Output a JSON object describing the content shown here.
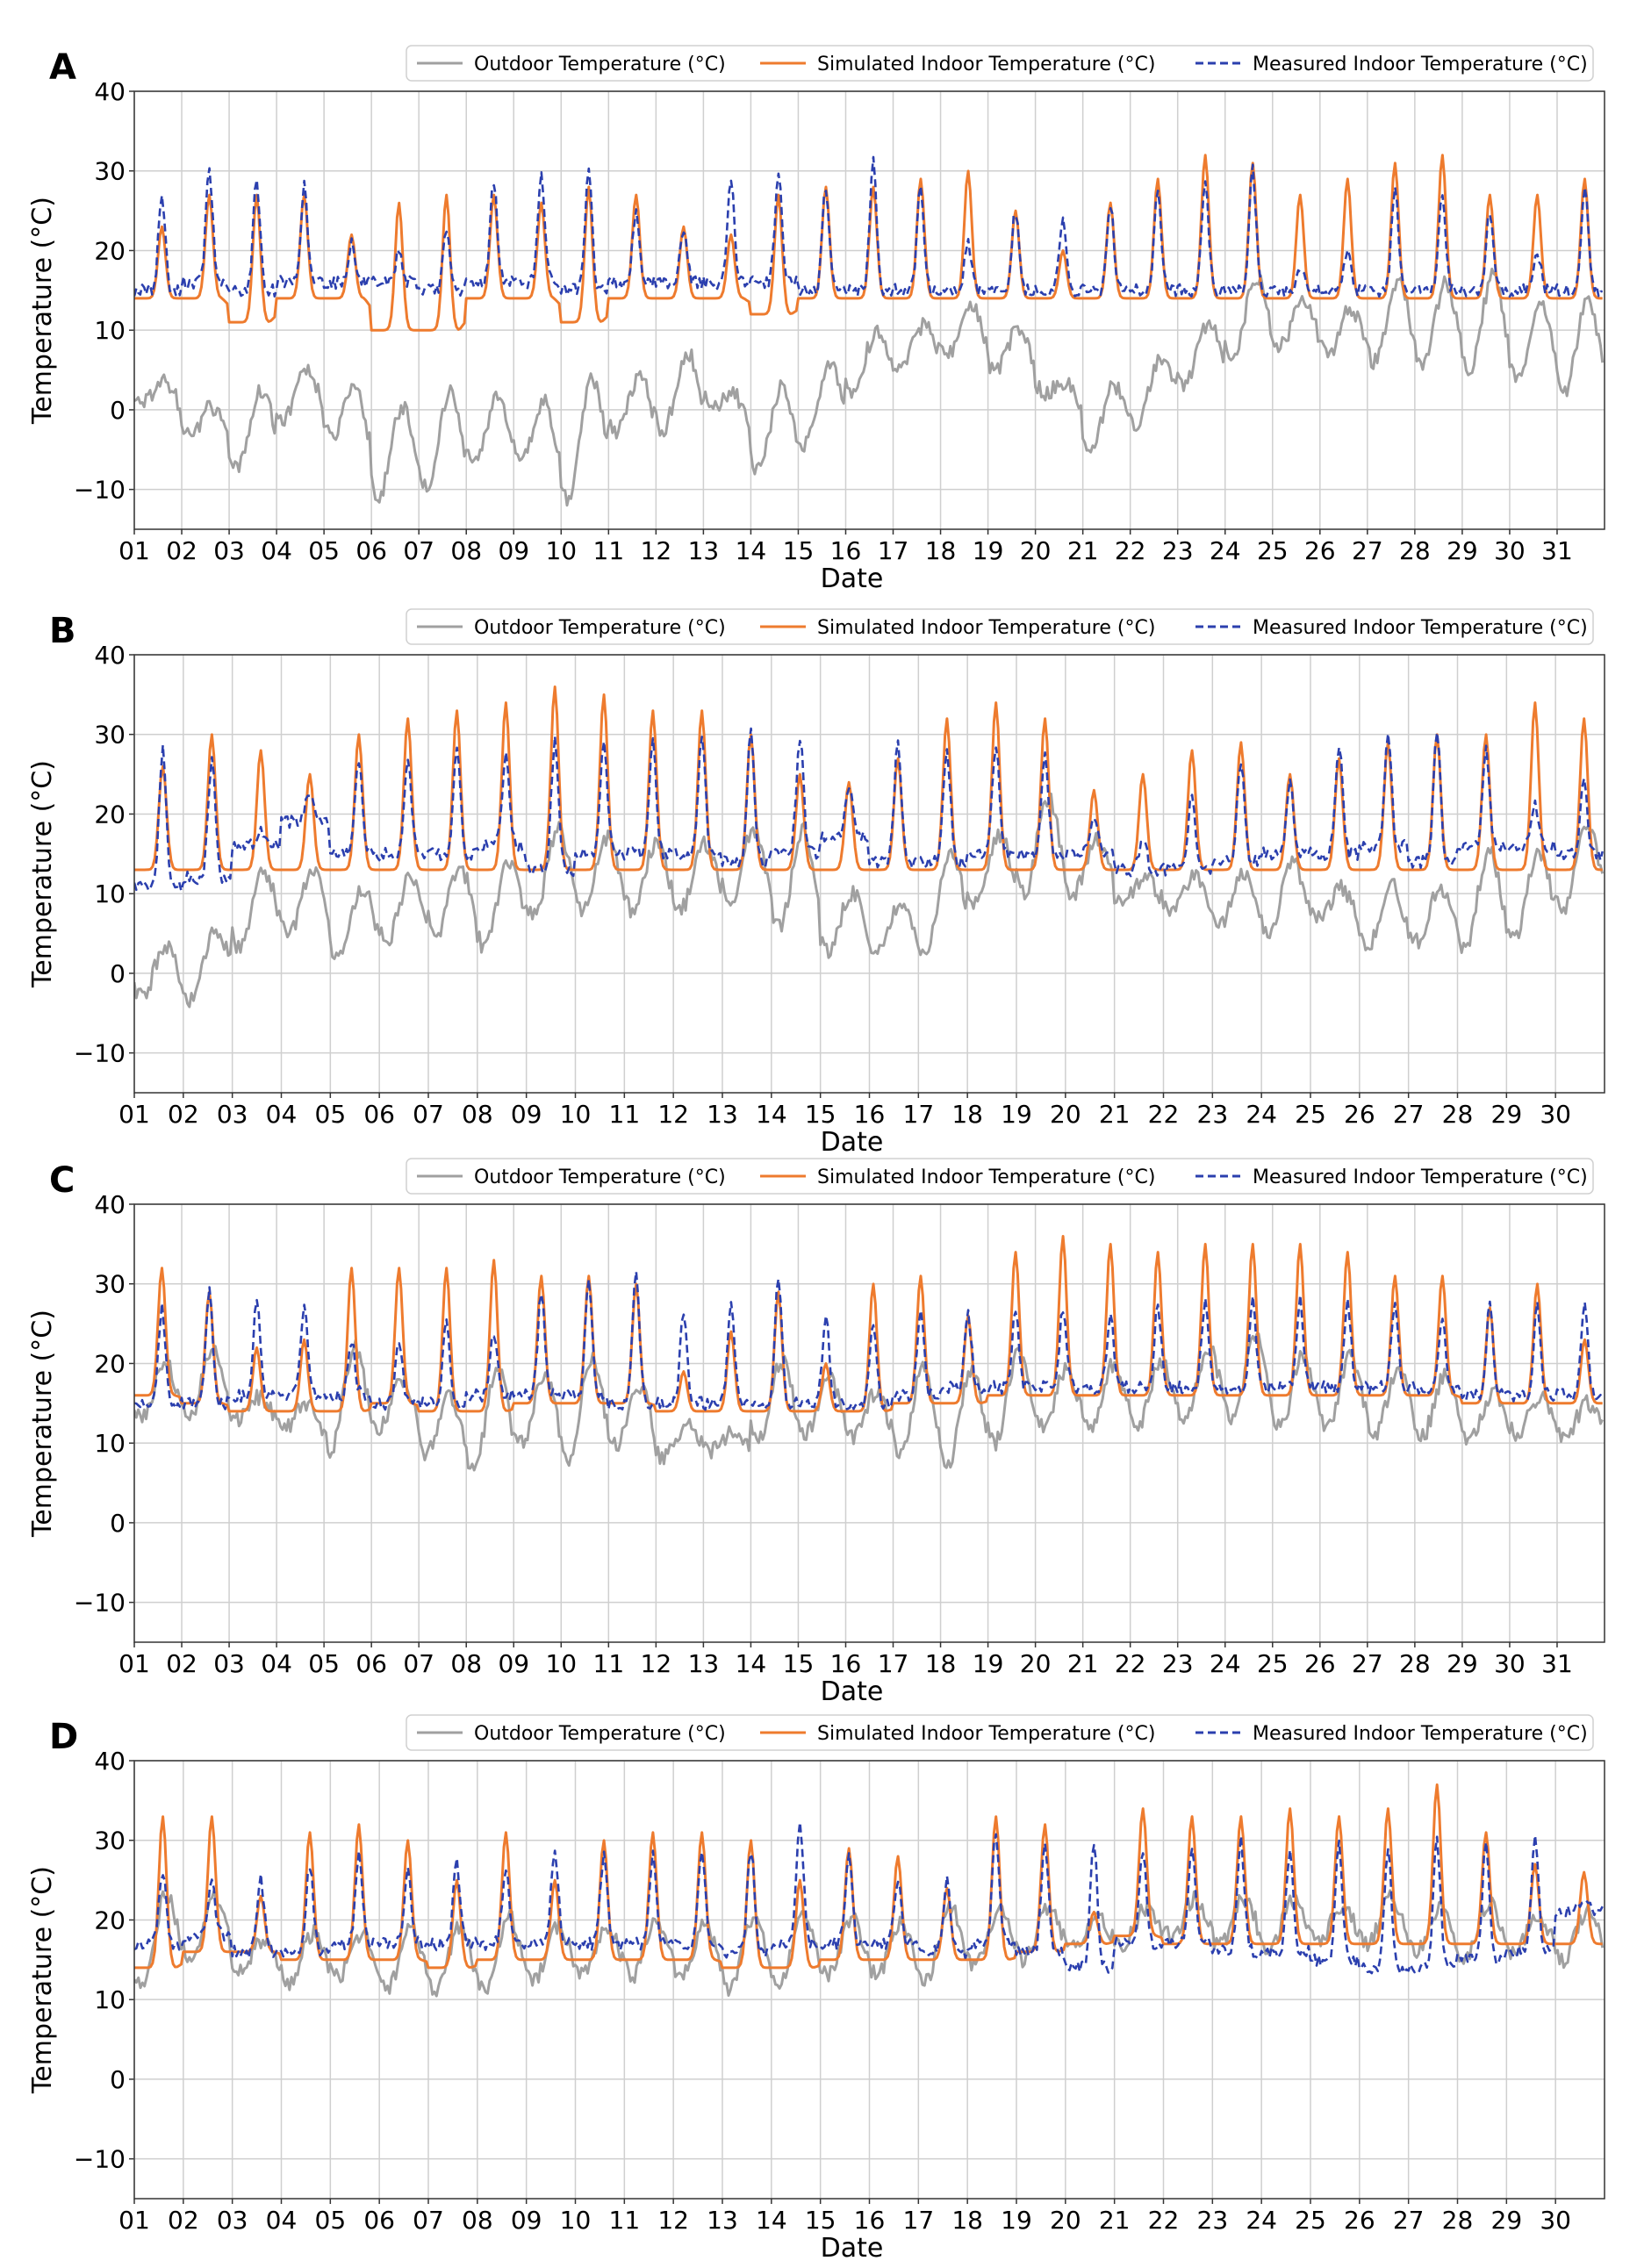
{
  "legend": {
    "outdoor": "Outdoor Temperature (°C)",
    "simulated": "Simulated Indoor Temperature (°C)",
    "measured": "Measured Indoor Temperature (°C)"
  },
  "colors": {
    "outdoor": "#a0a0a0",
    "simulated": "#ee7b2e",
    "measured": "#2b3fae",
    "grid": "#cfcfcf"
  },
  "chart_data": [
    {
      "type": "line",
      "panel": "A",
      "days": 31,
      "xlabel": "Date",
      "ylabel": "Temperature (°C)",
      "ylim": [
        -15,
        40
      ],
      "yticks": [
        -10,
        0,
        10,
        20,
        30,
        40
      ],
      "legend_position": "top-right",
      "series": [
        {
          "name": "Outdoor Temperature (°C)",
          "daily_min": [
            1,
            -3,
            -8,
            -1,
            -3,
            -11,
            -10,
            -7,
            -6,
            -12,
            -3,
            -3,
            1,
            -8,
            -5,
            2,
            5,
            7,
            5,
            3,
            -5,
            -2,
            3,
            6,
            8,
            7,
            6,
            6,
            5,
            4,
            2
          ],
          "daily_max": [
            5,
            2,
            0,
            6,
            6,
            0,
            1,
            1,
            3,
            1,
            4,
            6,
            5,
            2,
            4,
            9,
            10,
            14,
            11,
            6,
            2,
            5,
            10,
            16,
            14,
            13,
            16,
            16,
            17,
            14,
            14
          ]
        },
        {
          "name": "Simulated Indoor Temperature (°C)",
          "daily_min": [
            14,
            14,
            11,
            14,
            14,
            10,
            10,
            14,
            14,
            11,
            14,
            14,
            14,
            12,
            14,
            14,
            14,
            14,
            14,
            14,
            14,
            14,
            14,
            14,
            14,
            14,
            14,
            14,
            14,
            14,
            14
          ],
          "daily_max": [
            23,
            27,
            27,
            27,
            22,
            26,
            27,
            27,
            26,
            28,
            27,
            23,
            22,
            27,
            28,
            28,
            29,
            30,
            25,
            20,
            26,
            29,
            32,
            31,
            27,
            29,
            31,
            32,
            27,
            27,
            29
          ]
        },
        {
          "name": "Measured Indoor Temperature (°C)",
          "daily_min": [
            15,
            16,
            15,
            16,
            16,
            16,
            15,
            16,
            16,
            15,
            16,
            16,
            16,
            16,
            15,
            15,
            15,
            15,
            15,
            15,
            15,
            15,
            15,
            15,
            15,
            15,
            15,
            15,
            15,
            15,
            15
          ],
          "daily_max": [
            27,
            30,
            29,
            28,
            21,
            20,
            22,
            29,
            30,
            30,
            25,
            23,
            29,
            30,
            28,
            31,
            28,
            21,
            25,
            24,
            26,
            28,
            29,
            30,
            18,
            20,
            28,
            27,
            25,
            20,
            28
          ]
        }
      ]
    },
    {
      "type": "line",
      "panel": "B",
      "days": 30,
      "xlabel": "Date",
      "ylabel": "Temperature (°C)",
      "ylim": [
        -15,
        40
      ],
      "yticks": [
        -10,
        0,
        10,
        20,
        30,
        40
      ],
      "legend_position": "top-right",
      "series": [
        {
          "name": "Outdoor Temperature (°C)",
          "daily_min": [
            -3,
            -4,
            3,
            5,
            2,
            4,
            5,
            3,
            7,
            8,
            8,
            8,
            9,
            6,
            3,
            3,
            2,
            9,
            10,
            10,
            9,
            8,
            6,
            5,
            7,
            3,
            4,
            3,
            4,
            8
          ],
          "daily_max": [
            4,
            3,
            12,
            14,
            10,
            12,
            14,
            13,
            18,
            17,
            16,
            16,
            19,
            19,
            10,
            9,
            13,
            17,
            22,
            17,
            12,
            13,
            13,
            13,
            12,
            11,
            11,
            15,
            14,
            19
          ]
        },
        {
          "name": "Simulated Indoor Temperature (°C)",
          "daily_min": [
            13,
            13,
            13,
            13,
            13,
            13,
            13,
            13,
            13,
            13,
            13,
            13,
            13,
            13,
            13,
            13,
            13,
            13,
            13,
            13,
            13,
            13,
            13,
            13,
            13,
            13,
            13,
            13,
            13,
            13
          ],
          "daily_max": [
            26,
            30,
            28,
            25,
            30,
            32,
            33,
            34,
            36,
            35,
            33,
            33,
            30,
            25,
            24,
            27,
            32,
            34,
            32,
            23,
            25,
            28,
            29,
            25,
            27,
            29,
            30,
            30,
            34,
            32
          ]
        },
        {
          "name": "Measured Indoor Temperature (°C)",
          "daily_min": [
            11,
            12,
            16,
            19,
            15,
            15,
            15,
            16,
            13,
            15,
            15,
            15,
            14,
            15,
            17,
            14,
            14,
            15,
            15,
            15,
            13,
            13,
            14,
            15,
            15,
            16,
            14,
            16,
            16,
            15
          ],
          "daily_max": [
            28,
            27,
            18,
            23,
            27,
            27,
            28,
            28,
            29,
            29,
            29,
            30,
            30,
            30,
            24,
            29,
            28,
            29,
            28,
            20,
            17,
            23,
            27,
            24,
            29,
            30,
            30,
            28,
            21,
            24
          ]
        }
      ]
    },
    {
      "type": "line",
      "panel": "C",
      "days": 31,
      "xlabel": "Date",
      "ylabel": "Temperature (°C)",
      "ylim": [
        -15,
        40
      ],
      "yticks": [
        -10,
        0,
        10,
        20,
        30,
        40
      ],
      "legend_position": "top-right",
      "series": [
        {
          "name": "Outdoor Temperature (°C)",
          "daily_min": [
            13,
            13,
            13,
            12,
            9,
            12,
            9,
            6,
            10,
            8,
            10,
            8,
            9,
            10,
            11,
            11,
            9,
            7,
            10,
            12,
            12,
            12,
            13,
            13,
            12,
            12,
            11,
            11,
            10,
            11,
            11
          ],
          "daily_max": [
            20,
            22,
            16,
            16,
            21,
            19,
            17,
            18,
            19,
            20,
            18,
            12,
            11,
            20,
            18,
            17,
            20,
            18,
            21,
            19,
            20,
            20,
            22,
            24,
            21,
            21,
            19,
            19,
            16,
            16,
            15
          ]
        },
        {
          "name": "Simulated Indoor Temperature (°C)",
          "daily_min": [
            16,
            15,
            14,
            14,
            14,
            15,
            14,
            14,
            15,
            15,
            15,
            14,
            14,
            14,
            14,
            14,
            15,
            15,
            16,
            16,
            16,
            16,
            16,
            16,
            16,
            16,
            16,
            16,
            15,
            15,
            15
          ],
          "daily_max": [
            32,
            29,
            22,
            23,
            32,
            32,
            32,
            33,
            31,
            31,
            30,
            19,
            24,
            29,
            20,
            30,
            31,
            26,
            34,
            36,
            35,
            34,
            35,
            35,
            35,
            34,
            31,
            31,
            27,
            30,
            23
          ]
        },
        {
          "name": "Measured Indoor Temperature (°C)",
          "daily_min": [
            15,
            15,
            16,
            16,
            16,
            15,
            15,
            16,
            16,
            16,
            15,
            15,
            15,
            15,
            15,
            15,
            16,
            17,
            17,
            17,
            17,
            17,
            17,
            17,
            17,
            17,
            17,
            17,
            16,
            16,
            16
          ],
          "daily_max": [
            27,
            29,
            28,
            27,
            23,
            23,
            25,
            24,
            29,
            30,
            32,
            26,
            28,
            31,
            26,
            25,
            27,
            26,
            27,
            27,
            26,
            27,
            28,
            28,
            28,
            28,
            28,
            26,
            27,
            27,
            27
          ]
        }
      ]
    },
    {
      "type": "line",
      "panel": "D",
      "days": 30,
      "xlabel": "Date",
      "ylabel": "Temperature (°C)",
      "ylim": [
        -15,
        40
      ],
      "yticks": [
        -10,
        0,
        10,
        20,
        30,
        40
      ],
      "legend_position": "top-right",
      "series": [
        {
          "name": "Outdoor Temperature (°C)",
          "daily_min": [
            11,
            15,
            14,
            12,
            13,
            11,
            11,
            11,
            12,
            13,
            13,
            13,
            11,
            12,
            13,
            13,
            12,
            14,
            15,
            17,
            17,
            18,
            17,
            16,
            17,
            17,
            16,
            15,
            16,
            15
          ],
          "daily_max": [
            22,
            23,
            18,
            18,
            19,
            19,
            19,
            20,
            19,
            19,
            20,
            20,
            20,
            20,
            20,
            20,
            21,
            21,
            21,
            20,
            21,
            23,
            23,
            22,
            22,
            23,
            22,
            22,
            21,
            21
          ]
        },
        {
          "name": "Simulated Indoor Temperature (°C)",
          "daily_min": [
            14,
            16,
            16,
            15,
            15,
            15,
            14,
            15,
            15,
            15,
            15,
            15,
            14,
            14,
            15,
            15,
            15,
            15,
            16,
            17,
            18,
            17,
            17,
            17,
            17,
            17,
            17,
            17,
            17,
            17
          ],
          "daily_max": [
            33,
            33,
            23,
            31,
            32,
            30,
            25,
            31,
            25,
            30,
            31,
            31,
            30,
            25,
            29,
            28,
            24,
            33,
            32,
            21,
            34,
            33,
            33,
            34,
            33,
            34,
            37,
            31,
            27,
            26
          ]
        },
        {
          "name": "Measured Indoor Temperature (°C)",
          "daily_min": [
            17,
            18,
            16,
            16,
            17,
            17,
            17,
            17,
            17,
            17,
            17,
            17,
            16,
            17,
            17,
            17,
            16,
            17,
            16,
            14,
            17,
            17,
            16,
            16,
            15,
            14,
            14,
            15,
            16,
            21
          ],
          "daily_max": [
            26,
            25,
            25,
            27,
            28,
            26,
            27,
            27,
            29,
            28,
            28,
            28,
            29,
            32,
            28,
            25,
            25,
            31,
            30,
            30,
            29,
            29,
            30,
            29,
            30,
            29,
            30,
            30,
            31,
            23
          ]
        }
      ]
    }
  ]
}
